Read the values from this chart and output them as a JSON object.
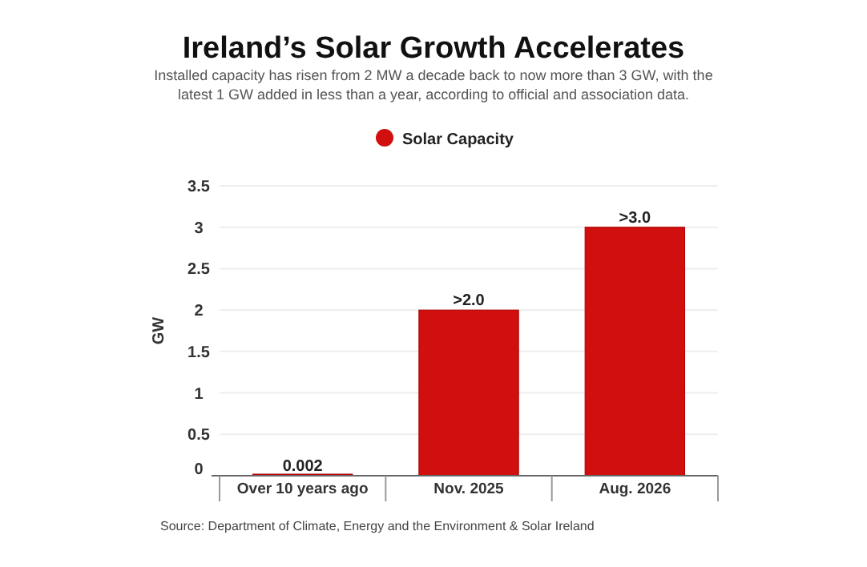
{
  "chart_data": {
    "type": "bar",
    "title": "Ireland’s Solar Growth Accelerates",
    "subtitle": "Installed capacity has risen from 2 MW a decade back to now more than 3 GW, with the latest 1 GW added in less than a year, according to official and association data.",
    "ylabel": "GW",
    "categories": [
      "Over 10 years ago",
      "Nov. 2025",
      "Aug. 2026"
    ],
    "series": [
      {
        "name": "Solar Capacity",
        "color": "#d20f0f",
        "values": [
          0.002,
          2,
          3
        ],
        "value_labels": [
          "0.002",
          ">2.0",
          ">3.0"
        ]
      }
    ],
    "ylim": [
      0,
      3.5
    ],
    "yticks": [
      0,
      0.5,
      1,
      1.5,
      2,
      2.5,
      3,
      3.5
    ],
    "grid": "y",
    "legend": "top",
    "annotations": [
      "Source: Department of Climate, Energy and the Environment & Solar Ireland"
    ]
  }
}
